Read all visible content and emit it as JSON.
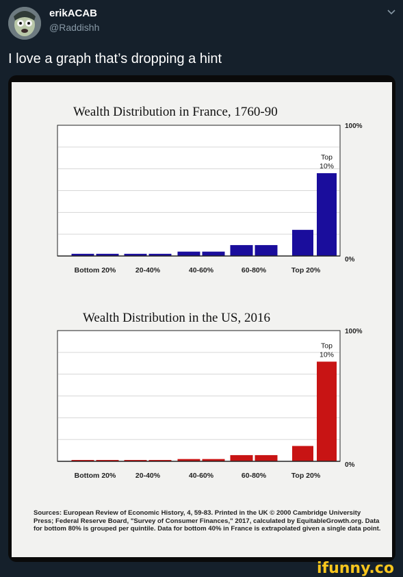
{
  "tweet": {
    "display_name": "erikACAB",
    "handle": "@Raddishh",
    "text": "I love a graph that’s dropping a hint"
  },
  "colors": {
    "france_bar": "#1a0d9c",
    "us_bar": "#c81414",
    "background": "#15202b",
    "ifunny": "#f7c51d"
  },
  "chart_data": [
    {
      "type": "bar",
      "title": "Wealth Distribution in France, 1760-90",
      "categories": [
        "Bottom 20%",
        "20-40%",
        "40-60%",
        "60-80%",
        "Top 20%"
      ],
      "bar_groups": [
        [
          0.5,
          0.5
        ],
        [
          0.5,
          0.5
        ],
        [
          1,
          1
        ],
        [
          2.5,
          2.5
        ],
        [
          6,
          19
        ]
      ],
      "annotation": "Top 10%",
      "ytick_top": "100%",
      "ytick_bottom": "0%",
      "ylim": [
        0,
        30
      ],
      "grid": true
    },
    {
      "type": "bar",
      "title": "Wealth Distribution in the US, 2016",
      "categories": [
        "Bottom 20%",
        "20-40%",
        "40-60%",
        "60-80%",
        "Top 20%"
      ],
      "bar_groups": [
        [
          0.1,
          0.1
        ],
        [
          0.2,
          0.2
        ],
        [
          1.4,
          1.4
        ],
        [
          3.8,
          3.8
        ],
        [
          9.4,
          61
        ]
      ],
      "annotation": "Top 10%",
      "ytick_top": "100%",
      "ytick_bottom": "0%",
      "ylim": [
        0,
        80
      ],
      "grid": true
    }
  ],
  "sources_text": "Sources: European Review of Economic History, 4, 59-83. Printed in the UK © 2000 Cambridge University Press; Federal Reserve Board, \"Survey of Consumer Finances,\" 2017, calculated by EquitableGrowth.org. Data for bottom 80% is grouped per quintile. Data for bottom 40% in France is extrapolated given a single data point.",
  "watermark": "ifunny.co"
}
